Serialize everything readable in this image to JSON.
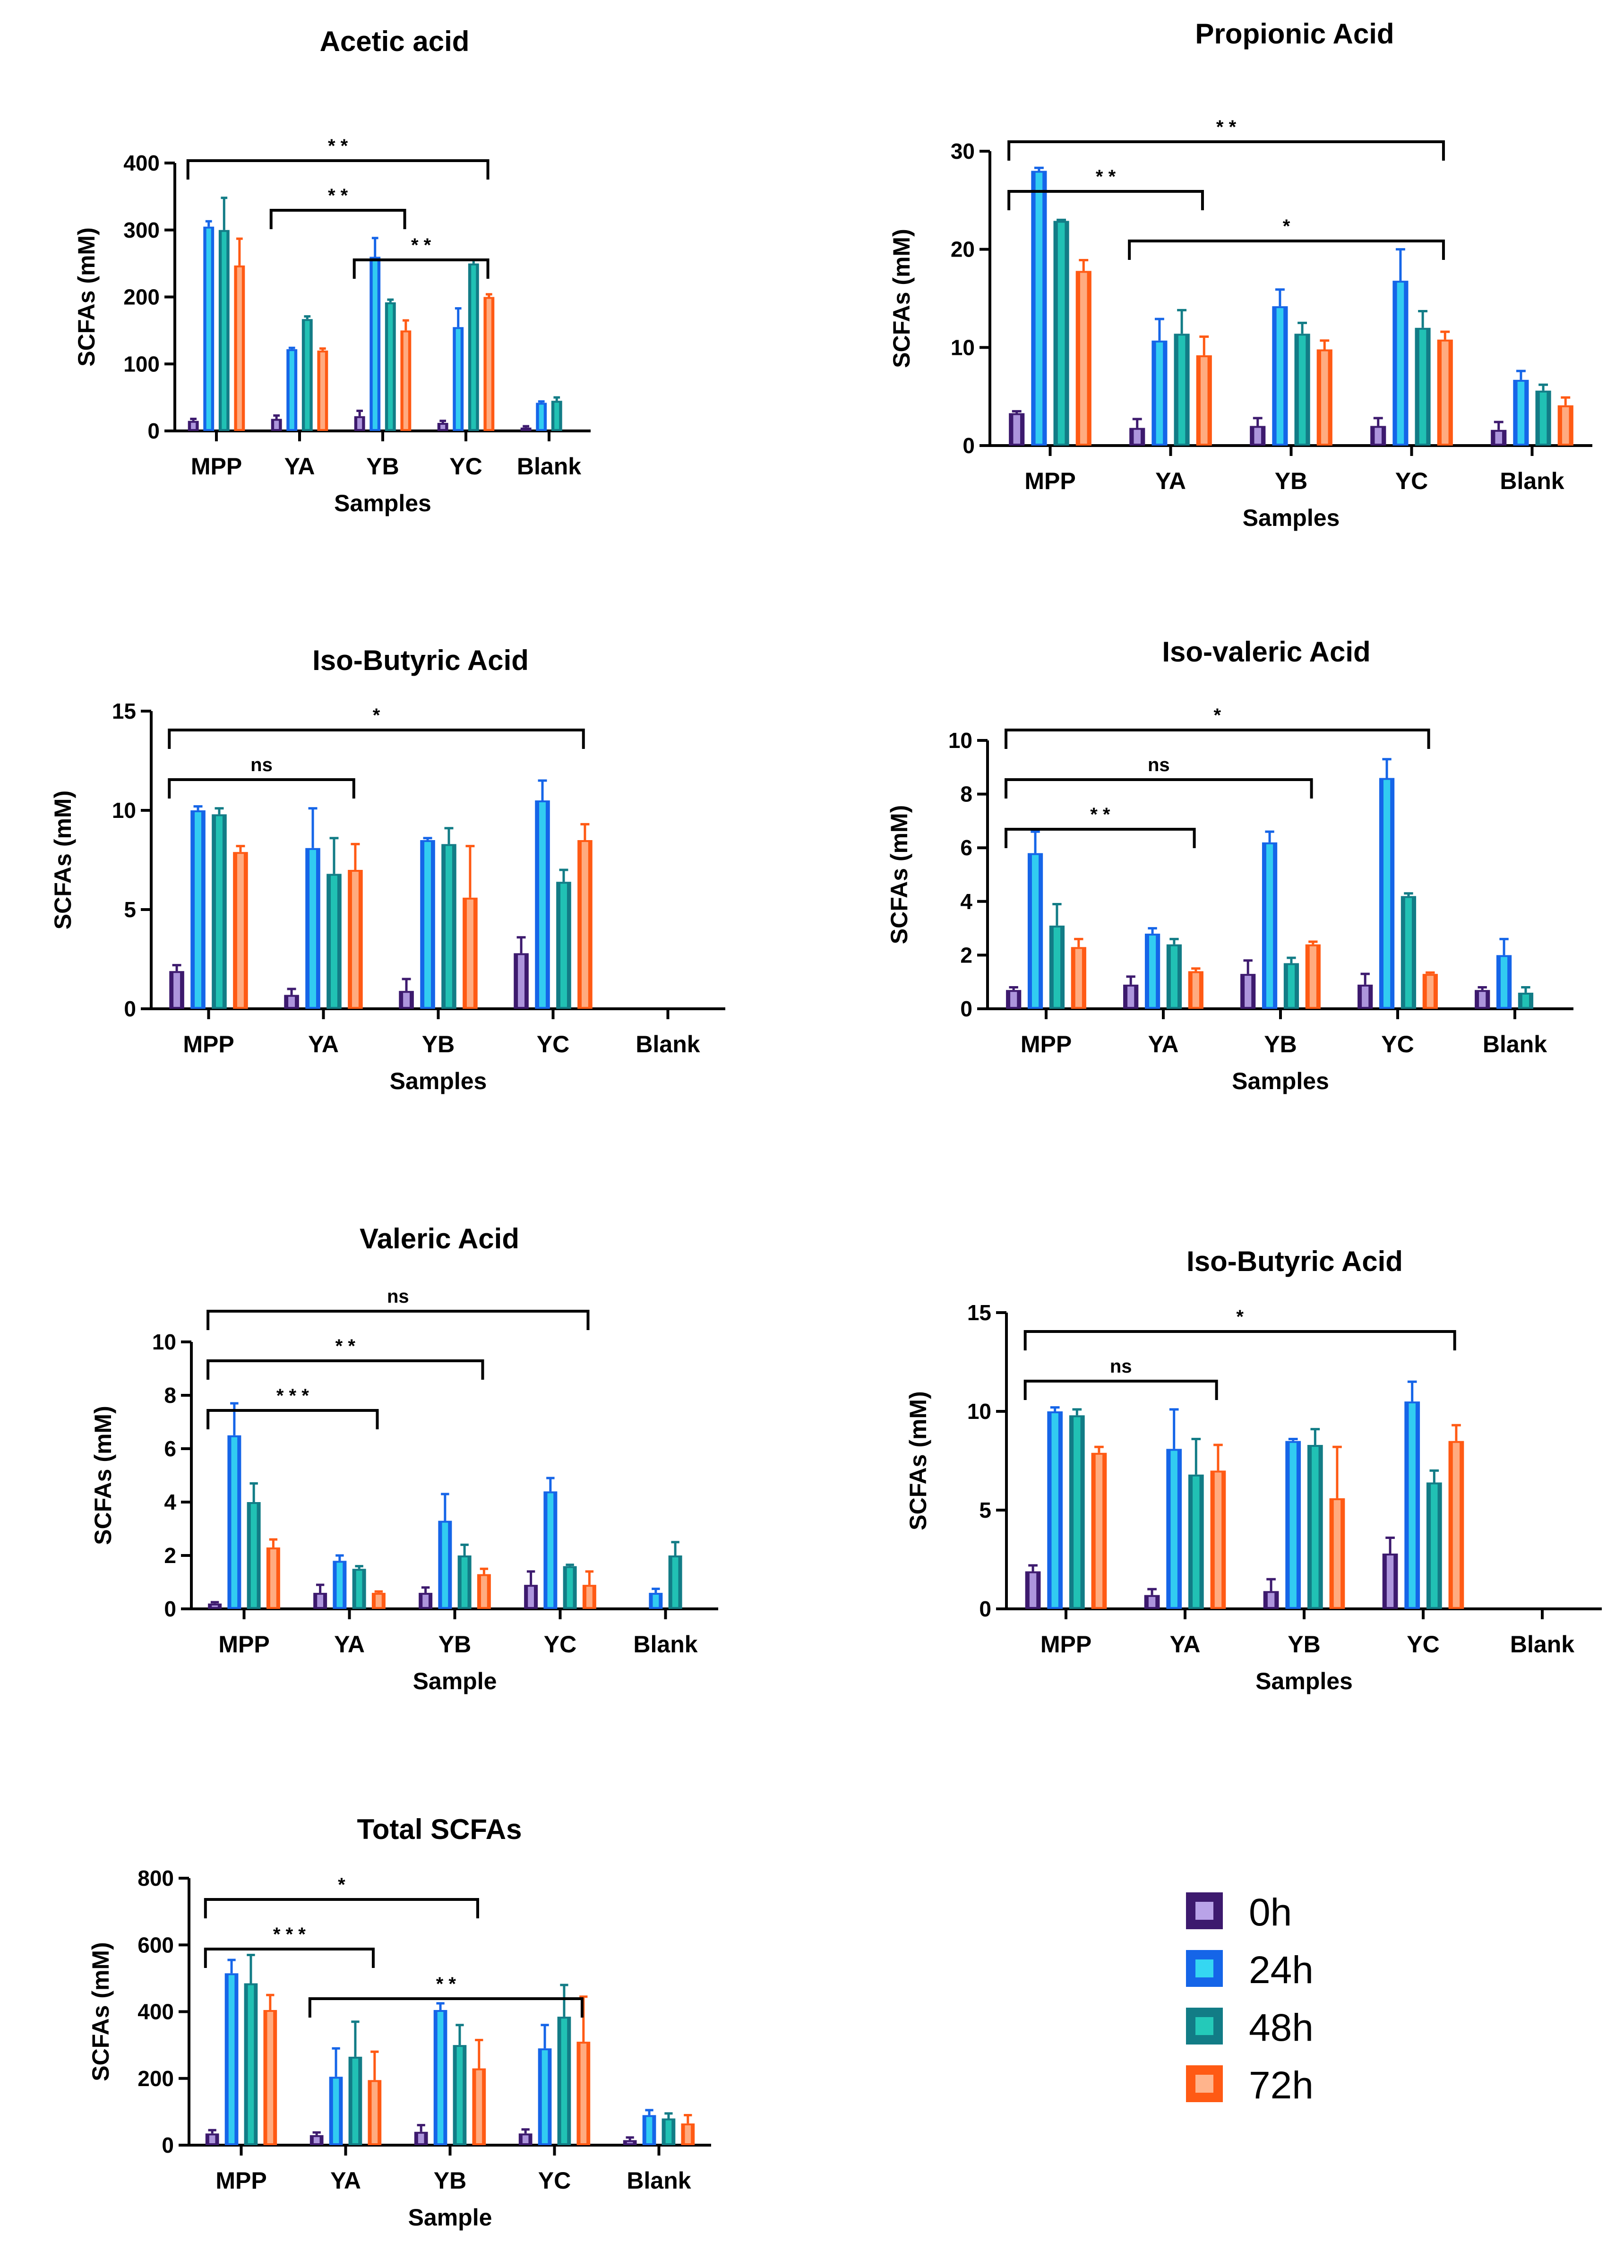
{
  "chart_data": [
    {
      "id": "acetic",
      "type": "bar",
      "title": "Acetic acid",
      "xlabel": "Samples",
      "ylabel": "SCFAs (mM)",
      "ylim": [
        0,
        400
      ],
      "yticks": [
        0,
        100,
        200,
        300,
        400
      ],
      "categories": [
        "MPP",
        "YA",
        "YB",
        "YC",
        "Blank"
      ],
      "series": [
        {
          "name": "0h",
          "values": [
            15,
            18,
            22,
            12,
            5
          ],
          "errors": [
            3,
            5,
            8,
            3,
            2
          ]
        },
        {
          "name": "24h",
          "values": [
            305,
            122,
            260,
            155,
            42
          ],
          "errors": [
            8,
            2,
            28,
            28,
            2
          ]
        },
        {
          "name": "48h",
          "values": [
            300,
            167,
            192,
            250,
            45
          ],
          "errors": [
            48,
            4,
            4,
            5,
            5
          ]
        },
        {
          "name": "72h",
          "values": [
            247,
            120,
            150,
            200,
            null
          ],
          "errors": [
            40,
            3,
            15,
            4,
            0
          ]
        }
      ],
      "significance": [
        {
          "from": 0,
          "to": 3,
          "label": "* *"
        },
        {
          "from": 1,
          "to": 2,
          "label": "* *"
        },
        {
          "from": 2,
          "to": 3,
          "label": "* *"
        }
      ]
    },
    {
      "id": "propionic",
      "type": "bar",
      "title": "Propionic Acid",
      "xlabel": "Samples",
      "ylabel": "SCFAs (mM)",
      "ylim": [
        0,
        30
      ],
      "yticks": [
        0,
        10,
        20,
        30
      ],
      "categories": [
        "MPP",
        "YA",
        "YB",
        "YC",
        "Blank"
      ],
      "series": [
        {
          "name": "0h",
          "values": [
            3.3,
            1.8,
            2.0,
            2.0,
            1.6
          ],
          "errors": [
            0.2,
            0.9,
            0.8,
            0.8,
            0.8
          ]
        },
        {
          "name": "24h",
          "values": [
            28.0,
            10.7,
            14.2,
            16.8,
            6.7
          ],
          "errors": [
            0.3,
            2.2,
            1.7,
            3.2,
            0.9
          ]
        },
        {
          "name": "48h",
          "values": [
            22.9,
            11.4,
            11.4,
            12.0,
            5.6
          ],
          "errors": [
            0.1,
            2.4,
            1.1,
            1.7,
            0.6
          ]
        },
        {
          "name": "72h",
          "values": [
            17.8,
            9.2,
            9.8,
            10.8,
            4.1
          ],
          "errors": [
            1.1,
            1.9,
            0.9,
            0.8,
            0.8
          ]
        }
      ],
      "significance": [
        {
          "from": 0,
          "to": 3,
          "label": "* *"
        },
        {
          "from": 0,
          "to": 1,
          "label": "* *"
        },
        {
          "from": 1,
          "to": 3,
          "label": "*"
        }
      ]
    },
    {
      "id": "isobutyric1",
      "type": "bar",
      "title": "Iso-Butyric Acid",
      "xlabel": "Samples",
      "ylabel": "SCFAs (mM)",
      "ylim": [
        0,
        15
      ],
      "yticks": [
        0,
        5,
        10,
        15
      ],
      "categories": [
        "MPP",
        "YA",
        "YB",
        "YC",
        "Blank"
      ],
      "series": [
        {
          "name": "0h",
          "values": [
            1.9,
            0.7,
            0.9,
            2.8,
            null
          ],
          "errors": [
            0.3,
            0.3,
            0.6,
            0.8,
            0
          ]
        },
        {
          "name": "24h",
          "values": [
            10.0,
            8.1,
            8.5,
            10.5,
            null
          ],
          "errors": [
            0.2,
            2.0,
            0.1,
            1.0,
            0
          ]
        },
        {
          "name": "48h",
          "values": [
            9.8,
            6.8,
            8.3,
            6.4,
            null
          ],
          "errors": [
            0.3,
            1.8,
            0.8,
            0.6,
            0
          ]
        },
        {
          "name": "72h",
          "values": [
            7.9,
            7.0,
            5.6,
            8.5,
            null
          ],
          "errors": [
            0.3,
            1.3,
            2.6,
            0.8,
            0
          ]
        }
      ],
      "significance": [
        {
          "from": 0,
          "to": 3,
          "label": "*"
        },
        {
          "from": 0,
          "to": 1,
          "label": "ns"
        }
      ]
    },
    {
      "id": "isovaleric",
      "type": "bar",
      "title": "Iso-valeric Acid",
      "xlabel": "Samples",
      "ylabel": "SCFAs (mM)",
      "ylim": [
        0,
        10
      ],
      "yticks": [
        0,
        2,
        4,
        6,
        8,
        10
      ],
      "categories": [
        "MPP",
        "YA",
        "YB",
        "YC",
        "Blank"
      ],
      "series": [
        {
          "name": "0h",
          "values": [
            0.7,
            0.9,
            1.3,
            0.9,
            0.7
          ],
          "errors": [
            0.1,
            0.3,
            0.5,
            0.4,
            0.1
          ]
        },
        {
          "name": "24h",
          "values": [
            5.8,
            2.8,
            6.2,
            8.6,
            2.0
          ],
          "errors": [
            0.8,
            0.2,
            0.4,
            0.7,
            0.6
          ]
        },
        {
          "name": "48h",
          "values": [
            3.1,
            2.4,
            1.7,
            4.2,
            0.6
          ],
          "errors": [
            0.8,
            0.2,
            0.2,
            0.1,
            0.2
          ]
        },
        {
          "name": "72h",
          "values": [
            2.3,
            1.4,
            2.4,
            1.3,
            null
          ],
          "errors": [
            0.3,
            0.1,
            0.1,
            0.05,
            0
          ]
        }
      ],
      "significance": [
        {
          "from": 0,
          "to": 3,
          "label": "*"
        },
        {
          "from": 0,
          "to": 2,
          "label": "ns"
        },
        {
          "from": 0,
          "to": 1,
          "label": "* *"
        }
      ]
    },
    {
      "id": "valeric",
      "type": "bar",
      "title": "Valeric Acid",
      "xlabel": "Sample",
      "ylabel": "SCFAs (mM)",
      "ylim": [
        0,
        10
      ],
      "yticks": [
        0,
        2,
        4,
        6,
        8,
        10
      ],
      "categories": [
        "MPP",
        "YA",
        "YB",
        "YC",
        "Blank"
      ],
      "series": [
        {
          "name": "0h",
          "values": [
            0.2,
            0.6,
            0.6,
            0.9,
            null
          ],
          "errors": [
            0.05,
            0.3,
            0.2,
            0.5,
            0
          ]
        },
        {
          "name": "24h",
          "values": [
            6.5,
            1.8,
            3.3,
            4.4,
            0.6
          ],
          "errors": [
            1.2,
            0.2,
            1.0,
            0.5,
            0.15
          ]
        },
        {
          "name": "48h",
          "values": [
            4.0,
            1.5,
            2.0,
            1.6,
            2.0
          ],
          "errors": [
            0.7,
            0.1,
            0.4,
            0.05,
            0.5
          ]
        },
        {
          "name": "72h",
          "values": [
            2.3,
            0.6,
            1.3,
            0.9,
            null
          ],
          "errors": [
            0.3,
            0.05,
            0.2,
            0.5,
            0
          ]
        }
      ],
      "significance": [
        {
          "from": 0,
          "to": 3,
          "label": "ns"
        },
        {
          "from": 0,
          "to": 2,
          "label": "* *"
        },
        {
          "from": 0,
          "to": 1,
          "label": "* * *"
        }
      ]
    },
    {
      "id": "isobutyric2",
      "type": "bar",
      "title": "Iso-Butyric Acid",
      "xlabel": "Samples",
      "ylabel": "SCFAs (mM)",
      "ylim": [
        0,
        15
      ],
      "yticks": [
        0,
        5,
        10,
        15
      ],
      "categories": [
        "MPP",
        "YA",
        "YB",
        "YC",
        "Blank"
      ],
      "series": [
        {
          "name": "0h",
          "values": [
            1.9,
            0.7,
            0.9,
            2.8,
            null
          ],
          "errors": [
            0.3,
            0.3,
            0.6,
            0.8,
            0
          ]
        },
        {
          "name": "24h",
          "values": [
            10.0,
            8.1,
            8.5,
            10.5,
            null
          ],
          "errors": [
            0.2,
            2.0,
            0.1,
            1.0,
            0
          ]
        },
        {
          "name": "48h",
          "values": [
            9.8,
            6.8,
            8.3,
            6.4,
            null
          ],
          "errors": [
            0.3,
            1.8,
            0.8,
            0.6,
            0
          ]
        },
        {
          "name": "72h",
          "values": [
            7.9,
            7.0,
            5.6,
            8.5,
            null
          ],
          "errors": [
            0.3,
            1.3,
            2.6,
            0.8,
            0
          ]
        }
      ],
      "significance": [
        {
          "from": 0,
          "to": 3,
          "label": "*"
        },
        {
          "from": 0,
          "to": 1,
          "label": "ns"
        }
      ]
    },
    {
      "id": "total",
      "type": "bar",
      "title": "Total SCFAs",
      "xlabel": "Sample",
      "ylabel": "SCFAs (mM)",
      "ylim": [
        0,
        800
      ],
      "yticks": [
        0,
        200,
        400,
        600,
        800
      ],
      "categories": [
        "MPP",
        "YA",
        "YB",
        "YC",
        "Blank"
      ],
      "series": [
        {
          "name": "0h",
          "values": [
            35,
            30,
            40,
            35,
            15
          ],
          "errors": [
            10,
            8,
            20,
            12,
            8
          ]
        },
        {
          "name": "24h",
          "values": [
            515,
            205,
            405,
            290,
            90
          ],
          "errors": [
            40,
            85,
            20,
            70,
            15
          ]
        },
        {
          "name": "48h",
          "values": [
            485,
            265,
            300,
            385,
            80
          ],
          "errors": [
            85,
            105,
            60,
            95,
            15
          ]
        },
        {
          "name": "72h",
          "values": [
            405,
            195,
            230,
            310,
            65
          ],
          "errors": [
            45,
            85,
            85,
            135,
            25
          ]
        }
      ],
      "significance": [
        {
          "from": 0,
          "to": 2,
          "label": "*"
        },
        {
          "from": 0,
          "to": 1,
          "label": "* * *"
        },
        {
          "from": 1,
          "to": 3,
          "label": "* *"
        }
      ]
    }
  ],
  "legend": {
    "position": "bottom-right",
    "items": [
      {
        "label": "0h",
        "color": "#3d1a6e",
        "inner": "#b9a3e8"
      },
      {
        "label": "24h",
        "color": "#1565e8",
        "inner": "#35d7f2"
      },
      {
        "label": "48h",
        "color": "#127c86",
        "inner": "#24c9b9"
      },
      {
        "label": "72h",
        "color": "#ff5a14",
        "inner": "#ffb48c"
      }
    ]
  }
}
